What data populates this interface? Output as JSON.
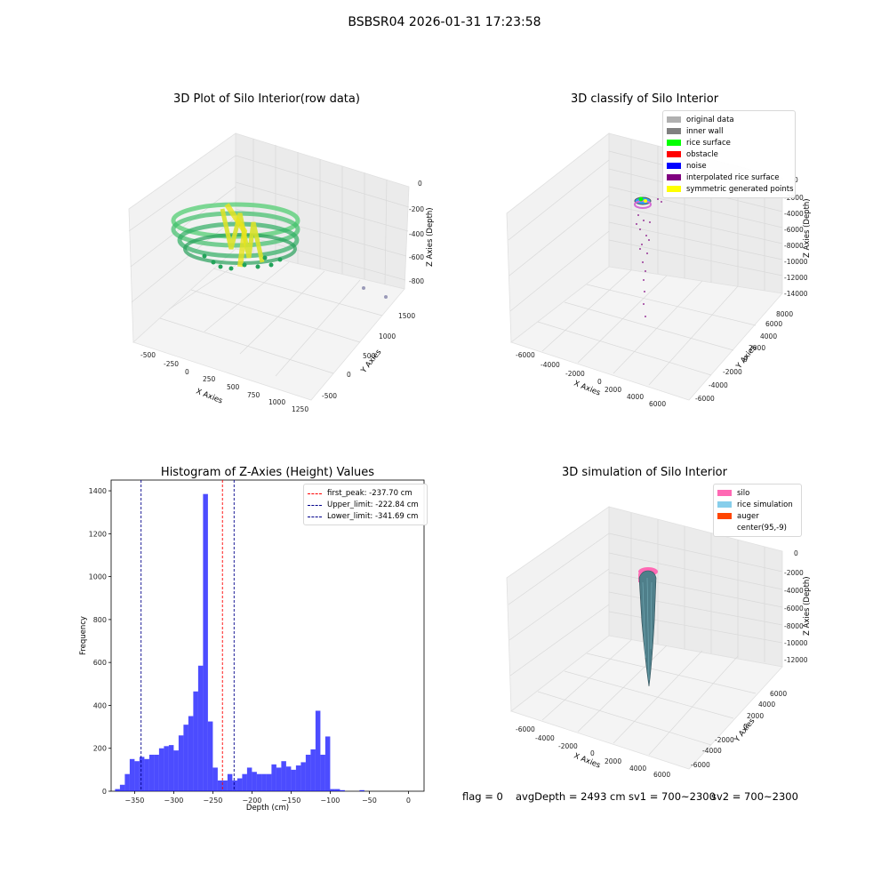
{
  "figure_title": "BSBSR04 2026-01-31 17:23:58",
  "footer": {
    "flag": "flag = 0",
    "avg_depth": "avgDepth = 2493 cm",
    "sv1": "sv1 = 700~2300",
    "sv2": "sv2 = 700~2300"
  },
  "chart_data": [
    {
      "type": "scatter",
      "projection": "3d",
      "title": "3D Plot of Silo Interior(row data)",
      "xlabel": "X Axies",
      "ylabel": "Y Axies",
      "zlabel": "Z Axies (Depth)",
      "x_ticks": [
        "-500",
        "-250",
        "0",
        "250",
        "500",
        "750",
        "1000",
        "1250"
      ],
      "y_ticks": [
        "-500",
        "0",
        "500",
        "1000",
        "1500"
      ],
      "z_ticks": [
        "0",
        "-200",
        "-400",
        "-600",
        "-800"
      ],
      "xlim": [
        -600,
        1300
      ],
      "ylim": [
        -600,
        1500
      ],
      "zlim": [
        -900,
        0
      ],
      "colormap": "viridis (green to yellow by depth)",
      "grid": true
    },
    {
      "type": "scatter",
      "projection": "3d",
      "title": "3D classify of Silo Interior",
      "xlabel": "X Axies",
      "ylabel": "Y Axies",
      "zlabel": "Z Axies (Depth)",
      "x_ticks": [
        "-6000",
        "-4000",
        "-2000",
        "0",
        "2000",
        "4000",
        "6000"
      ],
      "y_ticks": [
        "-6000",
        "-4000",
        "-2000",
        "0",
        "2000",
        "4000",
        "6000",
        "8000"
      ],
      "z_ticks": [
        "0",
        "-2000",
        "-4000",
        "-6000",
        "-8000",
        "-10000",
        "-12000",
        "-14000"
      ],
      "legend_position": "upper right",
      "legend": [
        {
          "label": "original data",
          "color": "#b0b0b0"
        },
        {
          "label": "inner wall",
          "color": "#808080"
        },
        {
          "label": "rice surface",
          "color": "#00ff00"
        },
        {
          "label": "obstacle",
          "color": "#ff0000"
        },
        {
          "label": "noise",
          "color": "#0000ff"
        },
        {
          "label": "interpolated rice surface",
          "color": "#800080"
        },
        {
          "label": "symmetric generated points",
          "color": "#ffff00"
        }
      ],
      "grid": true
    },
    {
      "type": "bar",
      "subtype": "histogram",
      "title": "Histogram of Z-Axies (Height) Values",
      "xlabel": "Depth (cm)",
      "ylabel": "Frequency",
      "xlim": [
        -380,
        20
      ],
      "ylim": [
        0,
        1450
      ],
      "x_ticks": [
        -350,
        -300,
        -250,
        -200,
        -150,
        -100,
        -50,
        0
      ],
      "y_ticks": [
        0,
        200,
        400,
        600,
        800,
        1000,
        1200,
        1400
      ],
      "bar_color": "#0000ff",
      "bin_edges_start": -375,
      "bin_width": 6.25,
      "values": [
        10,
        30,
        80,
        150,
        140,
        160,
        150,
        170,
        170,
        200,
        210,
        215,
        190,
        260,
        310,
        350,
        465,
        585,
        1385,
        325,
        110,
        50,
        50,
        80,
        50,
        60,
        80,
        110,
        90,
        80,
        80,
        80,
        125,
        110,
        140,
        115,
        100,
        120,
        135,
        170,
        195,
        375,
        170,
        255,
        10,
        10,
        5,
        0,
        0,
        0,
        5,
        0
      ],
      "vlines": [
        {
          "label": "first_peak: -237.70 cm",
          "x": -237.7,
          "color": "#ff0000"
        },
        {
          "label": "Upper_limit: -222.84 cm",
          "x": -222.84,
          "color": "#00008b"
        },
        {
          "label": "Lower_limit: -341.69 cm",
          "x": -341.69,
          "color": "#00008b"
        }
      ],
      "legend_position": "upper right"
    },
    {
      "type": "scatter",
      "projection": "3d",
      "title": "3D simulation of Silo Interior",
      "xlabel": "X Axies",
      "ylabel": "Y Axies",
      "zlabel": "Z Axies (Depth)",
      "x_ticks": [
        "-6000",
        "-4000",
        "-2000",
        "0",
        "2000",
        "4000",
        "6000"
      ],
      "y_ticks": [
        "-6000",
        "-4000",
        "-2000",
        "0",
        "2000",
        "4000",
        "6000"
      ],
      "z_ticks": [
        "0",
        "-2000",
        "-4000",
        "-6000",
        "-8000",
        "-10000",
        "-12000"
      ],
      "legend_position": "upper right",
      "legend": [
        {
          "label": "silo",
          "color": "#ff69b4"
        },
        {
          "label": "rice simulation",
          "color": "#87ceeb"
        },
        {
          "label": "auger",
          "color": "#ff4500"
        },
        {
          "label": "center(95,-9)",
          "color": ""
        }
      ],
      "grid": true
    }
  ]
}
